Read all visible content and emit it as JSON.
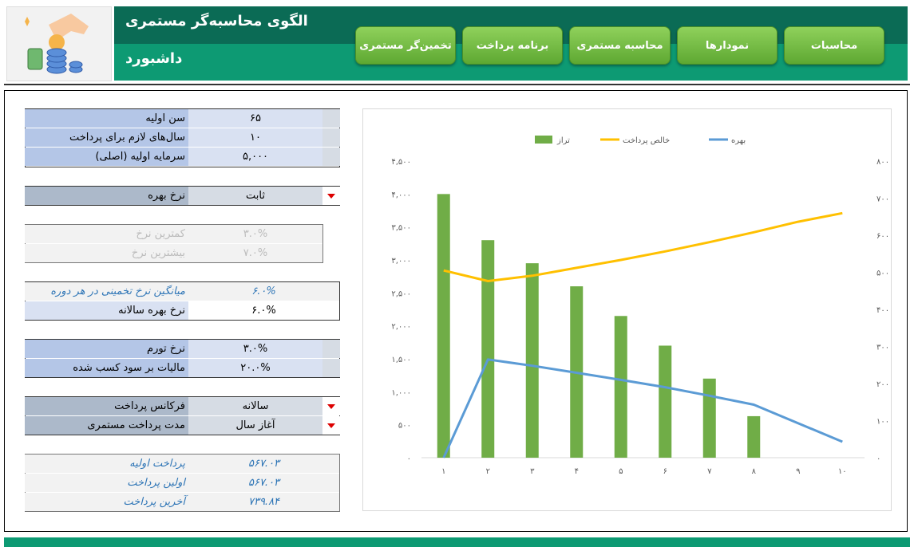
{
  "app": {
    "title": "الگوی محاسبه‌گر مستمری",
    "subtitle": "داشبورد",
    "colors": {
      "header_dark": "#0b6b55",
      "header": "#0d9a73",
      "button": "#70ad47"
    }
  },
  "nav": {
    "buttons": [
      "محاسبات",
      "نمودارها",
      "محاسبه مستمری",
      "برنامه پرداخت",
      "تخمین‌گر مستمری"
    ]
  },
  "inputs": {
    "rows1": [
      {
        "label": "سن اولیه",
        "value": "۶۵"
      },
      {
        "label": "سال‌های لازم برای پرداخت",
        "value": "۱۰"
      },
      {
        "label": "سرمایه اولیه (اصلی)",
        "value": "۵,۰۰۰"
      }
    ],
    "rate_type": {
      "label": "نرخ بهره",
      "value": "ثابت"
    },
    "rate_range": [
      {
        "label": "کمترین نرخ",
        "value": "۳.۰%"
      },
      {
        "label": "بیشترین نرخ",
        "value": "۷.۰%"
      }
    ],
    "rate_avg": {
      "label": "میانگین نرخ تخمینی در هر دوره",
      "value": "۶.۰%"
    },
    "rate_annual": {
      "label": "نرخ بهره سالانه",
      "value": "۶.۰%"
    },
    "inflation": {
      "label": "نرخ تورم",
      "value": "۳.۰%"
    },
    "tax": {
      "label": "مالیات بر سود کسب شده",
      "value": "۲۰.۰%"
    },
    "frequency": {
      "label": "فرکانس پرداخت",
      "value": "سالانه"
    },
    "timing": {
      "label": "مدت پرداخت مستمری",
      "value": "آغاز سال"
    }
  },
  "outputs": [
    {
      "label": "پرداخت اولیه",
      "value": "۵۶۷.۰۳"
    },
    {
      "label": "اولین پرداخت",
      "value": "۵۶۷.۰۳"
    },
    {
      "label": "آخرین پرداخت",
      "value": "۷۳۹.۸۴"
    }
  ],
  "chart_data": {
    "type": "bar",
    "categories": [
      "۱",
      "۲",
      "۳",
      "۴",
      "۵",
      "۶",
      "۷",
      "۸",
      "۹",
      "۱۰"
    ],
    "series": [
      {
        "name": "تراز",
        "type": "bar",
        "axis": "left",
        "color": "#70ad47",
        "values": [
          4000,
          3300,
          2950,
          2600,
          2150,
          1700,
          1200,
          630,
          null,
          null
        ]
      },
      {
        "name": "خالص پرداخت",
        "type": "line",
        "axis": "left",
        "color": "#ffc000",
        "values": [
          2840,
          2680,
          2760,
          2880,
          3000,
          3130,
          3270,
          3420,
          3580,
          3710
        ]
      },
      {
        "name": "بهره",
        "type": "line",
        "axis": "right",
        "color": "#5b9bd5",
        "values": [
          0,
          265,
          248,
          229,
          210,
          190,
          167,
          143,
          null,
          43
        ]
      }
    ],
    "y_left": {
      "min": 0,
      "max": 4500,
      "ticks": [
        "۰",
        "۵۰۰",
        "۱,۰۰۰",
        "۱,۵۰۰",
        "۲,۰۰۰",
        "۲,۵۰۰",
        "۳,۰۰۰",
        "۳,۵۰۰",
        "۴,۰۰۰",
        "۴,۵۰۰"
      ]
    },
    "y_right": {
      "min": 0,
      "max": 800,
      "ticks": [
        "۰",
        "۱۰۰",
        "۲۰۰",
        "۳۰۰",
        "۴۰۰",
        "۵۰۰",
        "۶۰۰",
        "۷۰۰",
        "۸۰۰"
      ]
    },
    "legend": "top",
    "grid": false
  }
}
